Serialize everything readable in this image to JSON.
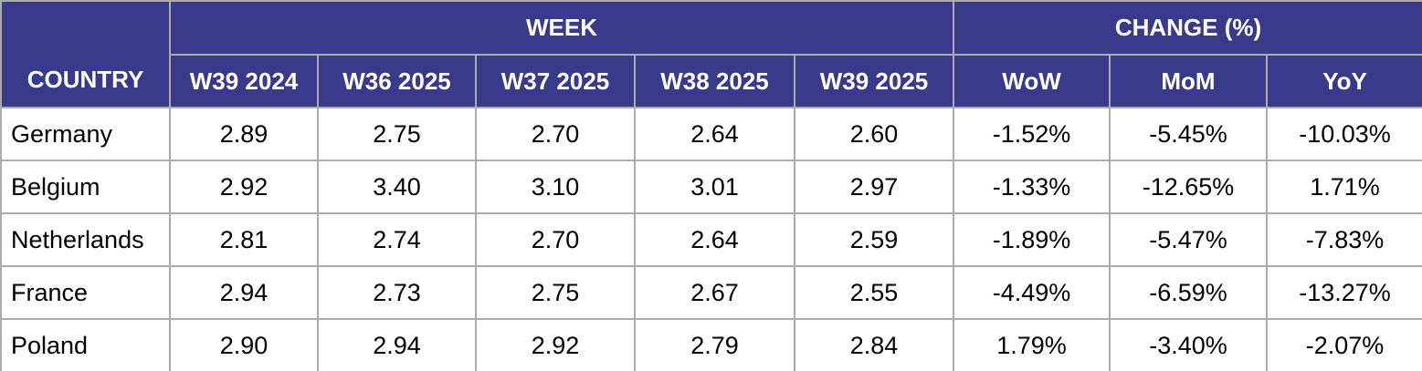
{
  "colors": {
    "header_bg": "#393A8C",
    "header_text": "#FFFFFF",
    "border": "#ACACAC",
    "cell_bg": "#FFFFFF",
    "cell_text": "#000000"
  },
  "chart_data": {
    "type": "table",
    "title": "",
    "header": {
      "country_label": "COUNTRY",
      "week_group_label": "WEEK",
      "change_group_label": "CHANGE (%)",
      "week_columns": [
        "W39 2024",
        "W36 2025",
        "W37 2025",
        "W38 2025",
        "W39 2025"
      ],
      "change_columns": [
        "WoW",
        "MoM",
        "YoY"
      ]
    },
    "rows": [
      {
        "country": "Germany",
        "values": [
          "2.89",
          "2.75",
          "2.70",
          "2.64",
          "2.60"
        ],
        "changes": [
          "-1.52%",
          "-5.45%",
          "-10.03%"
        ]
      },
      {
        "country": "Belgium",
        "values": [
          "2.92",
          "3.40",
          "3.10",
          "3.01",
          "2.97"
        ],
        "changes": [
          "-1.33%",
          "-12.65%",
          "1.71%"
        ]
      },
      {
        "country": "Netherlands",
        "values": [
          "2.81",
          "2.74",
          "2.70",
          "2.64",
          "2.59"
        ],
        "changes": [
          "-1.89%",
          "-5.47%",
          "-7.83%"
        ]
      },
      {
        "country": "France",
        "values": [
          "2.94",
          "2.73",
          "2.75",
          "2.67",
          "2.55"
        ],
        "changes": [
          "-4.49%",
          "-6.59%",
          "-13.27%"
        ]
      },
      {
        "country": "Poland",
        "values": [
          "2.90",
          "2.94",
          "2.92",
          "2.79",
          "2.84"
        ],
        "changes": [
          "1.79%",
          "-3.40%",
          "-2.07%"
        ]
      }
    ]
  }
}
